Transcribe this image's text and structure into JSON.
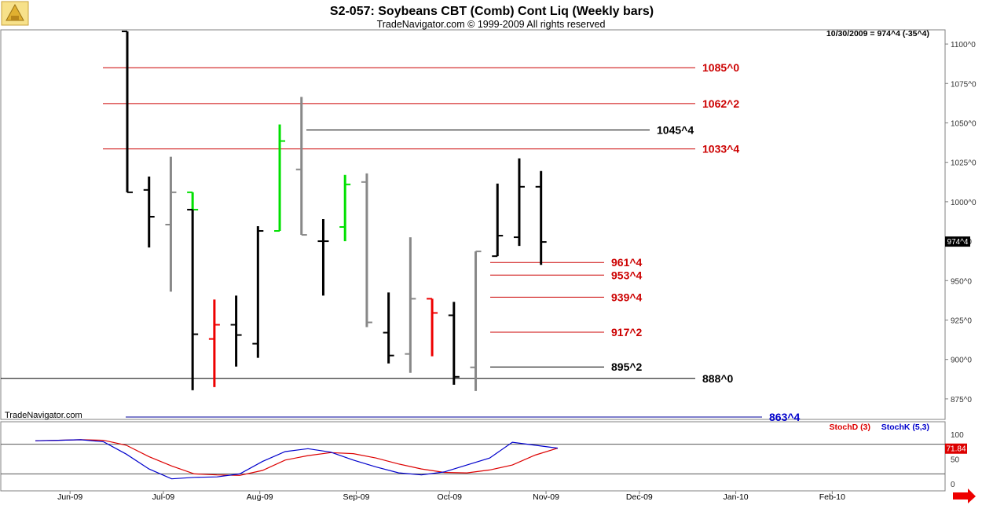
{
  "header": {
    "title": "S2-057:  Soybeans CBT (Comb) Cont Liq  (Weekly bars)",
    "copyright": "TradeNavigator.com © 1999-2009 All rights reserved",
    "last_quote": "10/30/2009 = 974^4 (-35^4)",
    "watermark": "TradeNavigator.com"
  },
  "colors": {
    "up_bar": "#000000",
    "down_bar": "#888888",
    "green_bar": "#00e000",
    "red_bar": "#ee0000",
    "resistance_line": "#cc0000",
    "support_line_dark": "#000000",
    "support_line_blue": "#000099",
    "stoch_d": "#dd0000",
    "stoch_k": "#0000cc"
  },
  "chart_data": [
    {
      "type": "ohlc",
      "title": "S2-057:  Soybeans CBT (Comb) Cont Liq  (Weekly bars)",
      "ylim": [
        862,
        1109
      ],
      "y_ticks": [
        "1100^0",
        "1075^0",
        "1050^0",
        "1025^0",
        "1000^0",
        "975^0",
        "950^0",
        "925^0",
        "900^0",
        "875^0"
      ],
      "y_tick_values": [
        1100,
        1075,
        1050,
        1025,
        1000,
        975,
        950,
        925,
        900,
        875
      ],
      "x_ticks": [
        "Jun-09",
        "Jul-09",
        "Aug-09",
        "Sep-09",
        "Oct-09",
        "Nov-09",
        "Dec-09",
        "Jan-10",
        "Feb-10"
      ],
      "current_price_label": "974^4",
      "current_price": 974.5,
      "bars": [
        {
          "date": "2009-06-05",
          "open": 1108,
          "high": 1108,
          "low": 1006,
          "close": 1006,
          "color": "black"
        },
        {
          "date": "2009-06-12",
          "open": 1007.5,
          "high": 1016,
          "low": 971,
          "close": 990.5,
          "color": "black"
        },
        {
          "date": "2009-06-19",
          "open": 985.5,
          "high": 1028.5,
          "low": 943,
          "close": 1006,
          "color": "gray"
        },
        {
          "date": "2009-06-26",
          "open": 1006,
          "high": 1006,
          "low": 995,
          "close": 995,
          "color": "green"
        },
        {
          "date": "2009-06-26",
          "open": 995,
          "high": 995,
          "low": 880.5,
          "close": 916,
          "color": "black"
        },
        {
          "date": "2009-07-03",
          "open": 913,
          "high": 938,
          "low": 882.5,
          "close": 922,
          "color": "red"
        },
        {
          "date": "2009-07-10",
          "open": 922,
          "high": 940.5,
          "low": 895.5,
          "close": 915.5,
          "color": "black"
        },
        {
          "date": "2009-07-17",
          "open": 910,
          "high": 984.5,
          "low": 901,
          "close": 981.5,
          "color": "black"
        },
        {
          "date": "2009-07-24",
          "open": 981.5,
          "high": 1049,
          "low": 981.5,
          "close": 1038.5,
          "color": "green"
        },
        {
          "date": "2009-07-31",
          "open": 1020.5,
          "high": 1066.5,
          "low": 979,
          "close": 979,
          "color": "gray"
        },
        {
          "date": "2009-08-07",
          "open": 975,
          "high": 989,
          "low": 940.5,
          "close": 975,
          "color": "black"
        },
        {
          "date": "2009-08-14",
          "open": 984,
          "high": 1017,
          "low": 975,
          "close": 1011,
          "color": "green"
        },
        {
          "date": "2009-08-21",
          "open": 1012.5,
          "high": 1018,
          "low": 920.5,
          "close": 923.5,
          "color": "gray"
        },
        {
          "date": "2009-08-28",
          "open": 917,
          "high": 942.5,
          "low": 897.5,
          "close": 902.5,
          "color": "black"
        },
        {
          "date": "2009-09-04",
          "open": 903.5,
          "high": 977.5,
          "low": 891.5,
          "close": 938.5,
          "color": "gray"
        },
        {
          "date": "2009-09-11",
          "open": 938.5,
          "high": 938.5,
          "low": 902,
          "close": 929.5,
          "color": "red"
        },
        {
          "date": "2009-09-18",
          "open": 928,
          "high": 936.5,
          "low": 884,
          "close": 889,
          "color": "black"
        },
        {
          "date": "2009-09-25",
          "open": 895,
          "high": 968.5,
          "low": 880,
          "close": 968.5,
          "color": "gray"
        },
        {
          "date": "2009-10-02",
          "open": 965.5,
          "high": 1011.5,
          "low": 965.5,
          "close": 978.5,
          "color": "black"
        },
        {
          "date": "2009-10-09",
          "open": 977.5,
          "high": 1027.5,
          "low": 972,
          "close": 1009.5,
          "color": "black"
        },
        {
          "date": "2009-10-16",
          "open": 1009.5,
          "high": 1019.5,
          "low": 960,
          "close": 974.5,
          "color": "black"
        }
      ],
      "levels": [
        {
          "label": "1085^0",
          "value": 1085.0,
          "color": "red"
        },
        {
          "label": "1062^2",
          "value": 1062.25,
          "color": "red"
        },
        {
          "label": "1045^4",
          "value": 1045.5,
          "color": "black"
        },
        {
          "label": "1033^4",
          "value": 1033.5,
          "color": "red"
        },
        {
          "label": "961^4",
          "value": 961.5,
          "color": "red"
        },
        {
          "label": "953^4",
          "value": 953.5,
          "color": "red"
        },
        {
          "label": "939^4",
          "value": 939.5,
          "color": "red"
        },
        {
          "label": "917^2",
          "value": 917.25,
          "color": "red"
        },
        {
          "label": "895^2",
          "value": 895.25,
          "color": "black"
        },
        {
          "label": "888^0",
          "value": 888.0,
          "color": "black"
        },
        {
          "label": "863^4",
          "value": 863.5,
          "color": "blue"
        }
      ]
    },
    {
      "type": "line",
      "title": "Stochastics",
      "ylim": [
        0,
        100
      ],
      "y_ticks": [
        "100",
        "50",
        "0"
      ],
      "y_tick_values": [
        100,
        50,
        0
      ],
      "reference_lines": [
        80,
        20
      ],
      "current_value_label": "71.84",
      "current_value": 71.84,
      "series": [
        {
          "name": "StochD (3)",
          "color": "red",
          "values": [
            87,
            88,
            89,
            88,
            78,
            55,
            36,
            20,
            18,
            17,
            27,
            48,
            57,
            63,
            61,
            52,
            40,
            30,
            23,
            22,
            28,
            38,
            58,
            72
          ]
        },
        {
          "name": "StochK (5,3)",
          "color": "blue",
          "values": [
            87,
            88,
            89,
            85,
            60,
            30,
            10,
            13,
            14,
            20,
            45,
            65,
            71,
            64,
            48,
            34,
            22,
            18,
            24,
            38,
            52,
            84,
            78,
            72
          ]
        }
      ]
    }
  ]
}
